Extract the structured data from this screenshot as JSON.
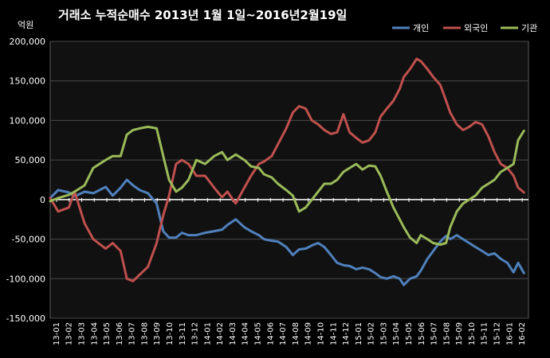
{
  "colors": {
    "background": "#000000",
    "plot_background": "#111111",
    "grid": "#4a4a4a",
    "zero_line": "#ffffff"
  },
  "chart_data": {
    "type": "line",
    "title": "거래소  누적순매수 2013년 1월 1일~2016년2월19일",
    "ylabel": "억원",
    "xlabel": "",
    "ylim": [
      -150000,
      200000
    ],
    "yticks": [
      200000,
      150000,
      100000,
      50000,
      0,
      -50000,
      -100000,
      -150000
    ],
    "ytick_labels": [
      "200,000",
      "150,000",
      "100,000",
      "50,000",
      "0",
      "-50,000",
      "-100,000",
      "-150,000"
    ],
    "grid": true,
    "legend_position": "top-right",
    "x_labels": [
      "13-01",
      "13-02",
      "13-03",
      "13-04",
      "13-05",
      "13-06",
      "13-07",
      "13-08",
      "13-09",
      "13-10",
      "13-11",
      "13-12",
      "14-01",
      "14-02",
      "14-03",
      "14-04",
      "14-05",
      "14-06",
      "14-07",
      "14-08",
      "14-09",
      "14-10",
      "14-11",
      "14-12",
      "15-01",
      "15-02",
      "15-03",
      "15-04",
      "15-05",
      "15-06",
      "15-07",
      "15-08",
      "15-09",
      "15-10",
      "15-11",
      "15-12",
      "16-01",
      "16-02"
    ],
    "x": [
      "2013-01-01",
      "2013-01-20",
      "2013-02-15",
      "2013-03-01",
      "2013-03-25",
      "2013-04-15",
      "2013-05-15",
      "2013-06-01",
      "2013-06-20",
      "2013-07-05",
      "2013-07-20",
      "2013-08-05",
      "2013-08-25",
      "2013-09-15",
      "2013-10-01",
      "2013-10-15",
      "2013-11-01",
      "2013-11-15",
      "2013-12-01",
      "2013-12-20",
      "2014-01-10",
      "2014-02-01",
      "2014-02-20",
      "2014-03-05",
      "2014-03-25",
      "2014-04-15",
      "2014-05-01",
      "2014-05-20",
      "2014-06-01",
      "2014-06-20",
      "2014-07-05",
      "2014-07-25",
      "2014-08-10",
      "2014-08-25",
      "2014-09-10",
      "2014-09-25",
      "2014-10-10",
      "2014-10-25",
      "2014-11-10",
      "2014-11-25",
      "2014-12-10",
      "2014-12-25",
      "2015-01-10",
      "2015-01-25",
      "2015-02-10",
      "2015-02-25",
      "2015-03-10",
      "2015-03-25",
      "2015-04-10",
      "2015-04-25",
      "2015-05-05",
      "2015-05-20",
      "2015-06-05",
      "2015-06-15",
      "2015-07-01",
      "2015-07-15",
      "2015-08-01",
      "2015-08-15",
      "2015-08-25",
      "2015-09-10",
      "2015-09-25",
      "2015-10-10",
      "2015-10-25",
      "2015-11-10",
      "2015-11-25",
      "2015-12-10",
      "2015-12-25",
      "2016-01-10",
      "2016-01-25",
      "2016-02-05",
      "2016-02-19"
    ],
    "series": [
      {
        "name": "개인",
        "color": "#4f81bd",
        "values": [
          2000,
          12000,
          9000,
          4000,
          10000,
          8000,
          16000,
          5000,
          15000,
          25000,
          18000,
          12000,
          8000,
          -5000,
          -40000,
          -48000,
          -48000,
          -42000,
          -45000,
          -45000,
          -42000,
          -40000,
          -38000,
          -32000,
          -25000,
          -35000,
          -40000,
          -45000,
          -50000,
          -52000,
          -53000,
          -60000,
          -70000,
          -63000,
          -62000,
          -58000,
          -55000,
          -60000,
          -70000,
          -80000,
          -83000,
          -84000,
          -88000,
          -86000,
          -88000,
          -93000,
          -98000,
          -100000,
          -97000,
          -100000,
          -108000,
          -100000,
          -97000,
          -90000,
          -75000,
          -65000,
          -53000,
          -46000,
          -50000,
          -45000,
          -50000,
          -55000,
          -60000,
          -65000,
          -70000,
          -68000,
          -75000,
          -80000,
          -92000,
          -80000,
          -93000
        ]
      },
      {
        "name": "외국인",
        "color": "#c0504d",
        "values": [
          2000,
          -15000,
          -10000,
          10000,
          -30000,
          -50000,
          -62000,
          -55000,
          -65000,
          -100000,
          -103000,
          -95000,
          -85000,
          -55000,
          -20000,
          5000,
          45000,
          50000,
          45000,
          30000,
          30000,
          15000,
          3000,
          10000,
          -5000,
          15000,
          30000,
          45000,
          48000,
          55000,
          70000,
          90000,
          110000,
          118000,
          115000,
          100000,
          95000,
          88000,
          83000,
          85000,
          108000,
          85000,
          78000,
          72000,
          75000,
          85000,
          105000,
          115000,
          125000,
          140000,
          155000,
          165000,
          178000,
          175000,
          165000,
          155000,
          145000,
          125000,
          110000,
          95000,
          88000,
          92000,
          98000,
          95000,
          80000,
          60000,
          45000,
          40000,
          30000,
          15000,
          9000
        ]
      },
      {
        "name": "기관",
        "color": "#9bbb59",
        "values": [
          -2000,
          2000,
          6000,
          10000,
          18000,
          40000,
          50000,
          55000,
          55000,
          82000,
          88000,
          90000,
          92000,
          90000,
          55000,
          25000,
          10000,
          15000,
          25000,
          50000,
          45000,
          55000,
          60000,
          50000,
          57000,
          50000,
          42000,
          40000,
          32000,
          28000,
          20000,
          12000,
          5000,
          -15000,
          -10000,
          0,
          10000,
          20000,
          20000,
          25000,
          35000,
          40000,
          45000,
          38000,
          43000,
          42000,
          30000,
          10000,
          -10000,
          -25000,
          -35000,
          -48000,
          -55000,
          -45000,
          -50000,
          -55000,
          -57000,
          -55000,
          -35000,
          -15000,
          -5000,
          0,
          5000,
          15000,
          20000,
          25000,
          35000,
          40000,
          45000,
          75000,
          87000
        ]
      }
    ]
  }
}
